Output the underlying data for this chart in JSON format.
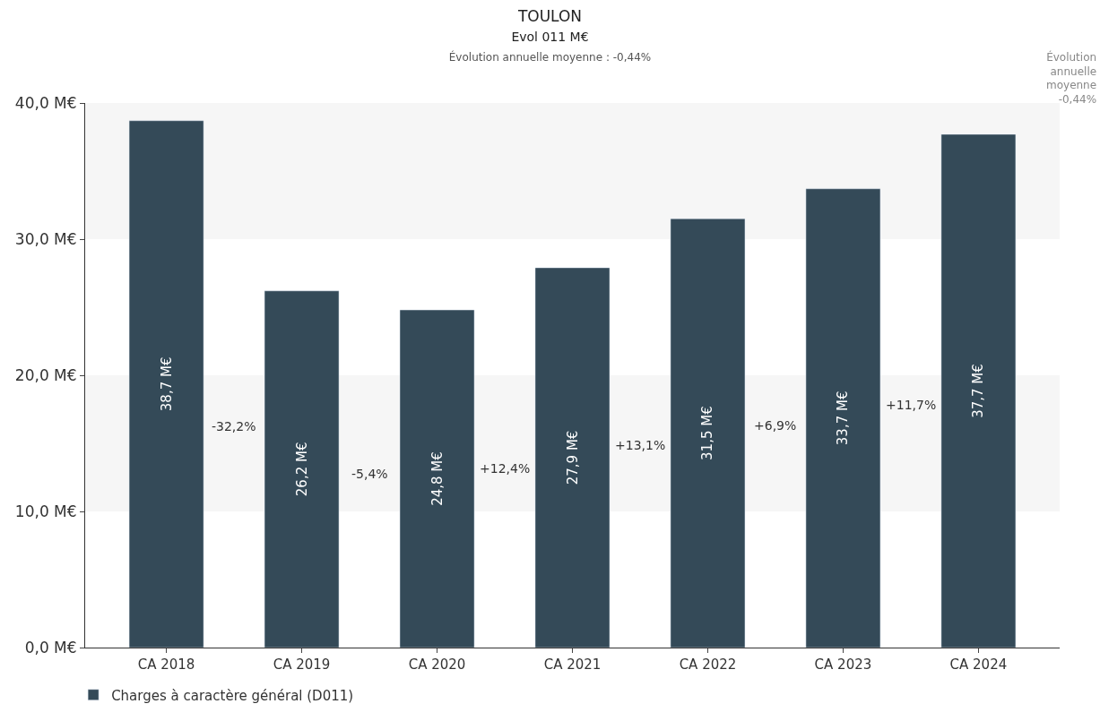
{
  "chart_data": {
    "type": "bar",
    "title": "TOULON",
    "subtitle": "Evol 011 M€\nÉvolution annuelle moyenne : -0,44%",
    "categories": [
      "CA 2018",
      "CA 2019",
      "CA 2020",
      "CA 2021",
      "CA 2022",
      "CA 2023",
      "CA 2024"
    ],
    "series": [
      {
        "name": "Charges à caractère général (D011)",
        "color": "#344a58",
        "values": [
          38.7,
          26.2,
          24.8,
          27.9,
          31.5,
          33.7,
          37.7
        ],
        "value_labels": [
          "38,7 M€",
          "26,2 M€",
          "24,8 M€",
          "27,9 M€",
          "31,5 M€",
          "33,7 M€",
          "37,7 M€"
        ]
      }
    ],
    "ylim": [
      0,
      40
    ],
    "yticks": [
      {
        "value": 0,
        "label": "0,0 M€"
      },
      {
        "value": 10,
        "label": "10,0 M€"
      },
      {
        "value": 20,
        "label": "20,0 M€"
      },
      {
        "value": 30,
        "label": "30,0 M€"
      },
      {
        "value": 40,
        "label": "40,0 M€"
      }
    ],
    "annotations": [
      "Évolution\nannuelle\nmoyenne\n-0,44%",
      "-32,2%",
      "-5,4%",
      "+12,4%",
      "+13,1%",
      "+6,9%",
      "+11,7%"
    ],
    "bands": [
      {
        "axis": "y",
        "from": 10,
        "to": 20,
        "color": "#f6f6f6"
      },
      {
        "axis": "y",
        "from": 30,
        "to": 40,
        "color": "#f6f6f6"
      }
    ],
    "legend": "bottom left"
  }
}
